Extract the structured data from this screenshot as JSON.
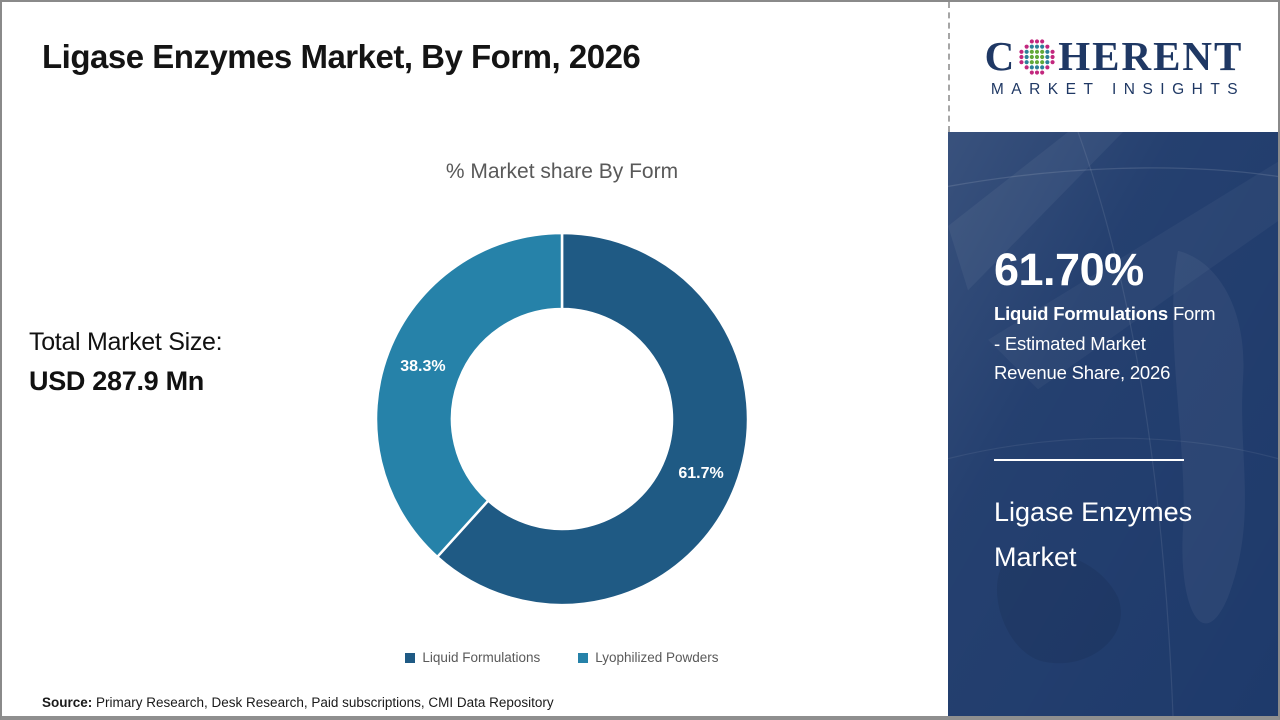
{
  "page": {
    "title": "Ligase Enzymes Market, By Form, 2026",
    "total_market_label": "Total Market Size:",
    "total_market_value": "USD 287.9 Mn",
    "source_label": "Source:",
    "source_text": " Primary Research, Desk Research, Paid subscriptions, CMI Data Repository"
  },
  "logo": {
    "word_start": "C",
    "word_end": "HERENT",
    "subtitle": "MARKET INSIGHTS",
    "navy": "#1F3864",
    "globe_colors": {
      "outer": "#C2277E",
      "mid": "#2C7F99",
      "inner": "#62A839"
    }
  },
  "chart_data": {
    "type": "pie",
    "donut": true,
    "donut_hole_ratio": 0.59,
    "title": "% Market share By Form",
    "categories": [
      "Liquid Formulations",
      "Lyophilized Powders"
    ],
    "values": [
      61.7,
      38.3
    ],
    "labels": [
      "61.7%",
      "38.3%"
    ],
    "colors": [
      "#1F5A84",
      "#2682A9"
    ],
    "units": "%",
    "start_angle_deg": 0,
    "direction": "clockwise",
    "legend_position": "bottom",
    "label_color": "#ffffff"
  },
  "sidebar": {
    "bg": "#1E3A6B",
    "stat_value": "61.70%",
    "stat_desc_lines": [
      {
        "bold": "Liquid Formulations",
        "rest": " Form"
      },
      {
        "bold": "",
        "rest": "- Estimated Market"
      },
      {
        "bold": "",
        "rest": "Revenue Share, 2026"
      }
    ],
    "market_name": "Ligase Enzymes Market"
  }
}
